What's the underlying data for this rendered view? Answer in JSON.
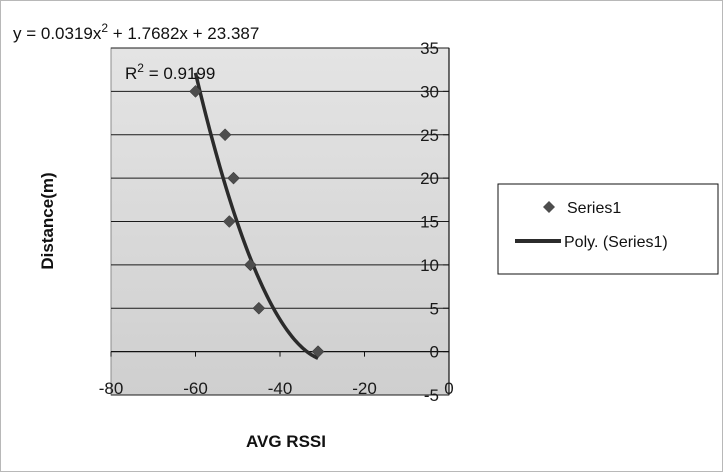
{
  "chart_data": {
    "type": "scatter",
    "xlabel": "AVG RSSI",
    "ylabel": "Distance(m)",
    "xlim": [
      -80,
      0
    ],
    "ylim": [
      -5,
      35
    ],
    "x_ticks": [
      -80,
      -60,
      -40,
      -20,
      0
    ],
    "y_ticks": [
      -5,
      0,
      5,
      10,
      15,
      20,
      25,
      30,
      35
    ],
    "grid": "horizontal",
    "legend_position": "right",
    "series": [
      {
        "name": "Series1",
        "marker": "diamond",
        "color": "#4d4d4d",
        "points": [
          {
            "x": -60,
            "y": 30
          },
          {
            "x": -53,
            "y": 25
          },
          {
            "x": -51,
            "y": 20
          },
          {
            "x": -52,
            "y": 15
          },
          {
            "x": -47,
            "y": 10
          },
          {
            "x": -45,
            "y": 5
          },
          {
            "x": -31,
            "y": 0
          }
        ]
      }
    ],
    "trendline": {
      "name": "Poly. (Series1)",
      "type": "polynomial",
      "order": 2,
      "color": "#2b2b2b",
      "coefficients": {
        "a": 0.0319,
        "b": 1.7682,
        "c": 23.387
      },
      "x_range": [
        -60,
        -31
      ],
      "equation_parts": {
        "lhs": "y = 0.0319x",
        "sup": "2",
        "rhs": " + 1.7682x + 23.387"
      },
      "r2_parts": {
        "r": "R",
        "sup": "2",
        "rhs": " = 0.9199"
      }
    }
  }
}
